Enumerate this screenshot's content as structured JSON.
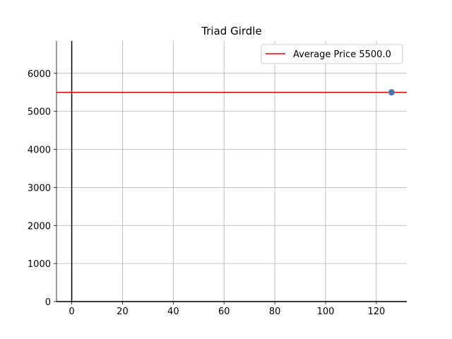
{
  "chart_data": {
    "type": "scatter",
    "title": "Triad Girdle",
    "xlabel": "",
    "ylabel": "",
    "xlim": [
      -6,
      132
    ],
    "ylim": [
      0,
      6850
    ],
    "xticks": [
      0,
      20,
      40,
      60,
      80,
      100,
      120
    ],
    "yticks": [
      0,
      1000,
      2000,
      3000,
      4000,
      5000,
      6000
    ],
    "grid": true,
    "points": [
      {
        "x": 126,
        "y": 5500
      }
    ],
    "hlines": [
      {
        "y": 5500,
        "label": "Average Price 5500.0",
        "color": "#ff0000"
      }
    ],
    "vlines": [
      {
        "x": 0,
        "color": "#000000"
      }
    ],
    "point_color": "#4c72b0",
    "legend_position": "top-right"
  }
}
